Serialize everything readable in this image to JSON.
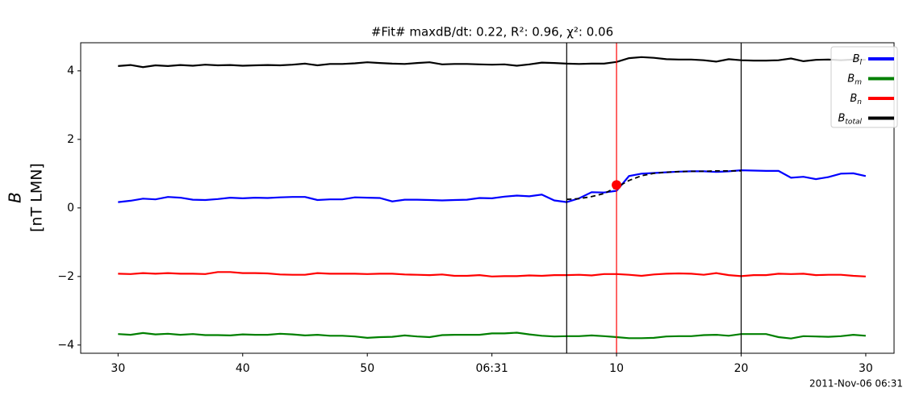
{
  "chart_data": {
    "type": "line",
    "title": "#Fit# maxdB/dt: 0.22, R²: 0.96, χ²: 0.06",
    "ylabel": [
      "B",
      "[nT LMN]"
    ],
    "annotation": "2011-Nov-06 06:31",
    "x": [
      30,
      31,
      32,
      33,
      34,
      35,
      36,
      37,
      38,
      39,
      40,
      41,
      42,
      43,
      44,
      45,
      46,
      47,
      48,
      49,
      50,
      51,
      52,
      53,
      54,
      55,
      56,
      57,
      58,
      59,
      60,
      61,
      62,
      63,
      64,
      65,
      66,
      67,
      68,
      69,
      70,
      71,
      72,
      73,
      74,
      75,
      76,
      77,
      78,
      79,
      80,
      81,
      82,
      83,
      84,
      85,
      86,
      87,
      88,
      89,
      90
    ],
    "xlim": [
      27,
      92.27
    ],
    "xticks": [
      30,
      40,
      50,
      {
        "value": 60,
        "label": "06:31"
      },
      {
        "value": 70,
        "label": "10"
      },
      {
        "value": 80,
        "label": "20"
      },
      {
        "value": 90,
        "label": "30"
      }
    ],
    "ylim": [
      -4.24,
      4.82
    ],
    "yticks": [
      {
        "value": -4,
        "label": "−4"
      },
      {
        "value": -2,
        "label": "−2"
      },
      0,
      2,
      4
    ],
    "legend": "upper right",
    "series": [
      {
        "name": [
          "B",
          "l"
        ],
        "color": "#0000ff",
        "values": [
          0.17,
          0.21,
          0.27,
          0.25,
          0.32,
          0.3,
          0.24,
          0.23,
          0.26,
          0.3,
          0.28,
          0.3,
          0.29,
          0.31,
          0.32,
          0.32,
          0.23,
          0.25,
          0.25,
          0.31,
          0.3,
          0.29,
          0.19,
          0.24,
          0.24,
          0.23,
          0.22,
          0.23,
          0.24,
          0.29,
          0.28,
          0.33,
          0.36,
          0.34,
          0.39,
          0.22,
          0.17,
          0.28,
          0.46,
          0.45,
          0.5,
          0.93,
          1.0,
          1.02,
          1.04,
          1.06,
          1.07,
          1.07,
          1.05,
          1.07,
          1.1,
          1.09,
          1.08,
          1.08,
          0.88,
          0.91,
          0.84,
          0.9,
          1.0,
          1.01,
          0.93
        ]
      },
      {
        "name": [
          "B",
          "m"
        ],
        "color": "#008000",
        "values": [
          -3.68,
          -3.7,
          -3.65,
          -3.69,
          -3.67,
          -3.7,
          -3.68,
          -3.71,
          -3.71,
          -3.72,
          -3.69,
          -3.7,
          -3.7,
          -3.67,
          -3.69,
          -3.72,
          -3.7,
          -3.73,
          -3.73,
          -3.75,
          -3.79,
          -3.77,
          -3.76,
          -3.72,
          -3.75,
          -3.77,
          -3.71,
          -3.7,
          -3.7,
          -3.7,
          -3.66,
          -3.66,
          -3.64,
          -3.69,
          -3.73,
          -3.75,
          -3.74,
          -3.74,
          -3.72,
          -3.74,
          -3.77,
          -3.8,
          -3.8,
          -3.79,
          -3.75,
          -3.74,
          -3.74,
          -3.71,
          -3.7,
          -3.73,
          -3.68,
          -3.68,
          -3.68,
          -3.77,
          -3.81,
          -3.74,
          -3.75,
          -3.76,
          -3.74,
          -3.7,
          -3.73
        ]
      },
      {
        "name": [
          "B",
          "n"
        ],
        "color": "#ff0000",
        "values": [
          -1.92,
          -1.93,
          -1.9,
          -1.92,
          -1.9,
          -1.92,
          -1.92,
          -1.93,
          -1.87,
          -1.87,
          -1.9,
          -1.9,
          -1.91,
          -1.94,
          -1.95,
          -1.95,
          -1.9,
          -1.92,
          -1.92,
          -1.92,
          -1.93,
          -1.92,
          -1.92,
          -1.94,
          -1.95,
          -1.96,
          -1.94,
          -1.98,
          -1.98,
          -1.96,
          -2.0,
          -1.99,
          -1.99,
          -1.97,
          -1.98,
          -1.96,
          -1.96,
          -1.95,
          -1.97,
          -1.93,
          -1.93,
          -1.95,
          -1.98,
          -1.94,
          -1.92,
          -1.91,
          -1.92,
          -1.95,
          -1.9,
          -1.96,
          -1.99,
          -1.96,
          -1.96,
          -1.92,
          -1.93,
          -1.92,
          -1.96,
          -1.95,
          -1.95,
          -1.98,
          -2.0
        ]
      },
      {
        "name": [
          "B",
          "total"
        ],
        "color": "#000000",
        "values": [
          4.14,
          4.17,
          4.11,
          4.16,
          4.14,
          4.17,
          4.15,
          4.18,
          4.16,
          4.17,
          4.15,
          4.16,
          4.17,
          4.16,
          4.18,
          4.21,
          4.16,
          4.2,
          4.2,
          4.22,
          4.25,
          4.23,
          4.21,
          4.2,
          4.23,
          4.25,
          4.19,
          4.2,
          4.2,
          4.19,
          4.18,
          4.19,
          4.15,
          4.19,
          4.24,
          4.23,
          4.21,
          4.2,
          4.21,
          4.21,
          4.26,
          4.37,
          4.4,
          4.38,
          4.34,
          4.33,
          4.33,
          4.31,
          4.27,
          4.34,
          4.31,
          4.3,
          4.3,
          4.31,
          4.36,
          4.28,
          4.32,
          4.33,
          4.31,
          4.33,
          4.32
        ]
      }
    ],
    "fit": {
      "color": "#000000",
      "x": [
        66,
        67,
        68,
        69,
        70,
        71,
        72,
        73,
        74,
        75,
        76,
        77,
        78,
        79,
        80
      ],
      "values": [
        0.25,
        0.27,
        0.33,
        0.42,
        0.6,
        0.8,
        0.94,
        1.01,
        1.04,
        1.06,
        1.07,
        1.07,
        1.08,
        1.08,
        1.08
      ]
    },
    "marker": {
      "color": "#ff0000",
      "x": 70,
      "y": 0.67
    },
    "vlines": [
      {
        "x": 66,
        "color": "#000000"
      },
      {
        "x": 70,
        "color": "#ff0000"
      },
      {
        "x": 80,
        "color": "#000000"
      }
    ]
  }
}
